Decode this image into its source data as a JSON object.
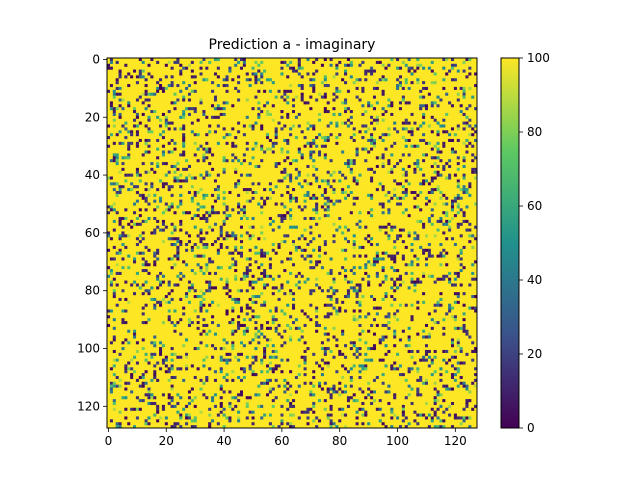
{
  "chart_data": {
    "type": "heatmap",
    "title": "Prediction a - imaginary",
    "xlabel": "",
    "ylabel": "",
    "grid": false,
    "xlim": [
      -0.5,
      127.5
    ],
    "ylim": [
      127.5,
      -0.5
    ],
    "x_ticks": [
      0,
      20,
      40,
      60,
      80,
      100,
      120
    ],
    "x_tick_labels": [
      "0",
      "20",
      "40",
      "60",
      "80",
      "100",
      "120"
    ],
    "y_ticks": [
      0,
      20,
      40,
      60,
      80,
      100,
      120
    ],
    "y_tick_labels": [
      "0",
      "20",
      "40",
      "60",
      "80",
      "100",
      "120"
    ],
    "shape": [
      128,
      128
    ],
    "colormap": "viridis",
    "colormap_stops": [
      "#440154",
      "#3b528b",
      "#21918c",
      "#5ec962",
      "#fde725"
    ],
    "colorbar": {
      "range": [
        0,
        100
      ],
      "ticks": [
        0,
        20,
        40,
        60,
        80,
        100
      ],
      "tick_labels": [
        "0",
        "20",
        "40",
        "60",
        "80",
        "100"
      ]
    },
    "value_distribution": {
      "dominant_value": 100,
      "dominant_fraction": 0.8,
      "secondary_fraction": 0.08,
      "low_fraction": 0.12
    }
  }
}
